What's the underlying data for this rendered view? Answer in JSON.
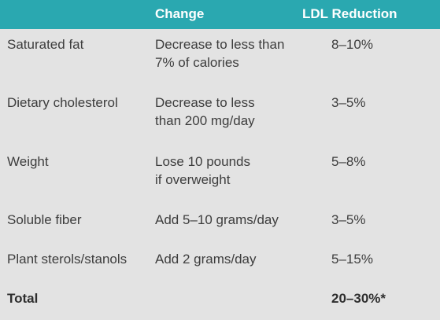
{
  "header": {
    "change_label": "Change",
    "ldl_label": "LDL Reduction",
    "background_color": "#2aa8b0",
    "text_color": "#ffffff"
  },
  "rows": [
    {
      "factor": "Saturated fat",
      "change": "Decrease to less than\n7% of calories",
      "ldl": "8–10%"
    },
    {
      "factor": "Dietary cholesterol",
      "change": "Decrease to less\nthan 200 mg/day",
      "ldl": "3–5%"
    },
    {
      "factor": "Weight",
      "change": "Lose 10 pounds\nif overweight",
      "ldl": "5–8%"
    },
    {
      "factor": "Soluble fiber",
      "change": "Add 5–10 grams/day",
      "ldl": "3–5%"
    },
    {
      "factor": "Plant sterols/stanols",
      "change": "Add 2 grams/day",
      "ldl": "5–15%"
    }
  ],
  "total": {
    "label": "Total",
    "change": "",
    "ldl": "20–30%*"
  },
  "colors": {
    "table_background": "#e3e3e3",
    "body_text": "#3d3d3d"
  }
}
